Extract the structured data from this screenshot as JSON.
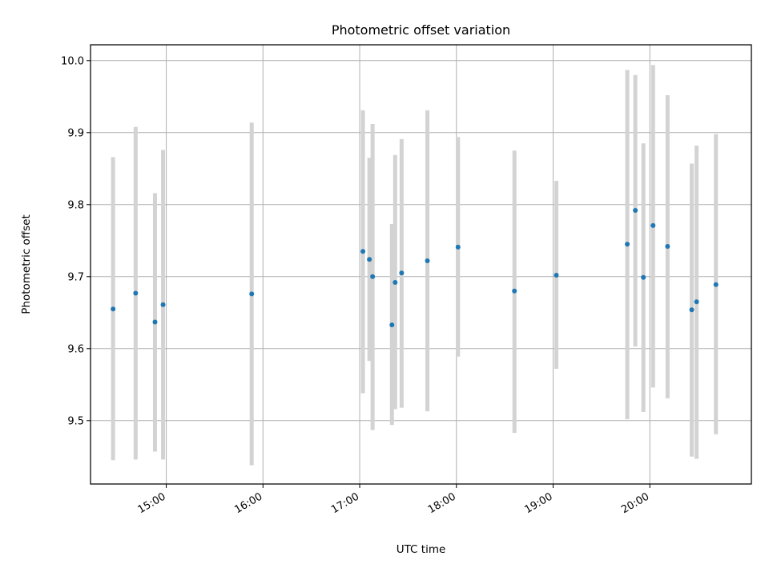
{
  "chart_data": {
    "type": "scatter",
    "title": "Photometric offset variation",
    "xlabel": "UTC time",
    "ylabel": "Photometric offset",
    "xlim": [
      "14:13",
      "21:03"
    ],
    "ylim": [
      9.412,
      10.022
    ],
    "grid": true,
    "x_ticks": [
      "15:00",
      "16:00",
      "17:00",
      "18:00",
      "19:00",
      "20:00"
    ],
    "y_ticks": [
      9.5,
      9.6,
      9.7,
      9.8,
      9.9,
      10.0
    ],
    "y_tick_labels": [
      "9.5",
      "9.6",
      "9.7",
      "9.8",
      "9.9",
      "10.0"
    ],
    "colors": {
      "points": "#1f77b4",
      "error_bars": "#d3d3d3"
    },
    "series": [
      {
        "marker": "point",
        "points": [
          {
            "time": "14:27",
            "value": 9.655,
            "low": 9.445,
            "high": 9.866
          },
          {
            "time": "14:41",
            "value": 9.677,
            "low": 9.446,
            "high": 9.908
          },
          {
            "time": "14:53",
            "value": 9.637,
            "low": 9.457,
            "high": 9.816
          },
          {
            "time": "14:58",
            "value": 9.661,
            "low": 9.446,
            "high": 9.876
          },
          {
            "time": "15:53",
            "value": 9.676,
            "low": 9.438,
            "high": 9.914
          },
          {
            "time": "17:02",
            "value": 9.735,
            "low": 9.538,
            "high": 9.931
          },
          {
            "time": "17:06",
            "value": 9.724,
            "low": 9.583,
            "high": 9.865
          },
          {
            "time": "17:08",
            "value": 9.7,
            "low": 9.487,
            "high": 9.912
          },
          {
            "time": "17:20",
            "value": 9.633,
            "low": 9.494,
            "high": 9.773
          },
          {
            "time": "17:22",
            "value": 9.692,
            "low": 9.516,
            "high": 9.869
          },
          {
            "time": "17:26",
            "value": 9.705,
            "low": 9.518,
            "high": 9.891
          },
          {
            "time": "17:42",
            "value": 9.722,
            "low": 9.513,
            "high": 9.931
          },
          {
            "time": "18:01",
            "value": 9.741,
            "low": 9.589,
            "high": 9.894
          },
          {
            "time": "18:36",
            "value": 9.68,
            "low": 9.483,
            "high": 9.875
          },
          {
            "time": "19:02",
            "value": 9.702,
            "low": 9.572,
            "high": 9.833
          },
          {
            "time": "19:46",
            "value": 9.745,
            "low": 9.502,
            "high": 9.987
          },
          {
            "time": "19:51",
            "value": 9.792,
            "low": 9.603,
            "high": 9.98
          },
          {
            "time": "19:56",
            "value": 9.699,
            "low": 9.512,
            "high": 9.885
          },
          {
            "time": "20:02",
            "value": 9.771,
            "low": 9.546,
            "high": 9.994
          },
          {
            "time": "20:11",
            "value": 9.742,
            "low": 9.531,
            "high": 9.952
          },
          {
            "time": "20:26",
            "value": 9.654,
            "low": 9.45,
            "high": 9.857
          },
          {
            "time": "20:29",
            "value": 9.665,
            "low": 9.447,
            "high": 9.882
          },
          {
            "time": "20:41",
            "value": 9.689,
            "low": 9.481,
            "high": 9.898
          }
        ]
      }
    ]
  }
}
